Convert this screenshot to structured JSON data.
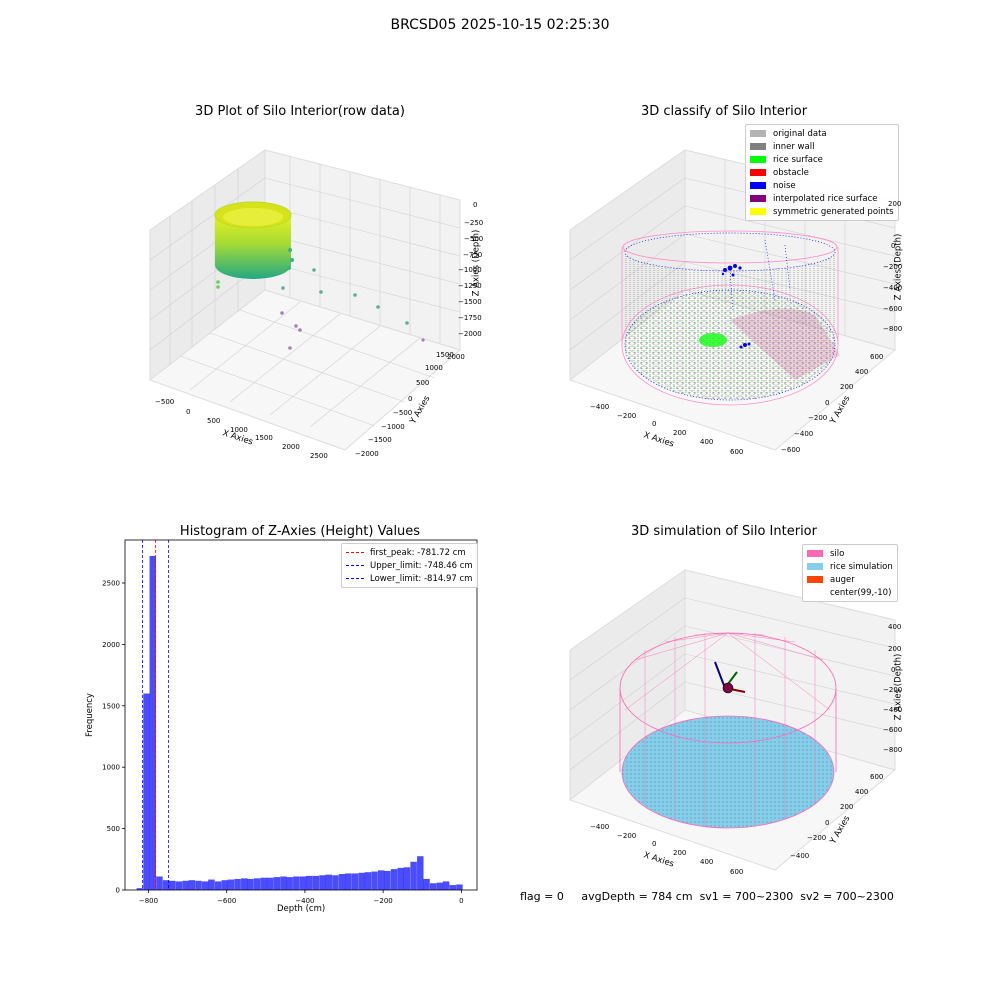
{
  "figure": {
    "title": "BRCSD05 2025-10-15 02:25:30",
    "status_line": {
      "flag": "flag = 0",
      "avg_depth": "avgDepth = 784 cm",
      "sv1": "sv1 = 700~2300",
      "sv2": "sv2 = 700~2300"
    }
  },
  "panels": {
    "raw": {
      "title": "3D Plot of Silo Interior(row data)",
      "xlabel": "X Axies",
      "ylabel": "Y Axies",
      "zlabel": "Z Axies (Depth)",
      "xticks": [
        "−500",
        "0",
        "500",
        "1000",
        "1500",
        "2000",
        "2500"
      ],
      "yticks": [
        "−2000",
        "−1500",
        "−1000",
        "−500",
        "0",
        "500",
        "1000",
        "1500",
        "2000"
      ],
      "zticks": [
        "0",
        "−250",
        "−500",
        "−750",
        "−1000",
        "−1250",
        "−1500",
        "−1750",
        "−2000"
      ]
    },
    "classify": {
      "title": "3D classify of Silo Interior",
      "xlabel": "X Axies",
      "ylabel": "Y Axies",
      "zlabel": "Z Axies (Depth)",
      "xticks": [
        "−400",
        "−200",
        "0",
        "200",
        "400",
        "600"
      ],
      "yticks": [
        "−600",
        "−400",
        "−200",
        "0",
        "200",
        "400",
        "600"
      ],
      "zticks": [
        "200",
        "0",
        "−200",
        "−400",
        "−600",
        "−800"
      ],
      "legend": [
        {
          "label": "original data",
          "color": "#b3b3b3"
        },
        {
          "label": "inner wall",
          "color": "#808080"
        },
        {
          "label": "rice surface",
          "color": "#00ff00"
        },
        {
          "label": "obstacle",
          "color": "#ff0000"
        },
        {
          "label": "noise",
          "color": "#0000ff"
        },
        {
          "label": "interpolated rice surface",
          "color": "#800080"
        },
        {
          "label": "symmetric generated points",
          "color": "#ffff00"
        }
      ]
    },
    "histogram": {
      "title": "Histogram of Z-Axies (Height) Values",
      "xlabel": "Depth (cm)",
      "ylabel": "Frequency",
      "legend": [
        {
          "label": "first_peak: -781.72 cm",
          "color": "#ff0000"
        },
        {
          "label": "Upper_limit: -748.46 cm",
          "color": "#0000ff"
        },
        {
          "label": "Lower_limit: -814.97 cm",
          "color": "#0000ff"
        }
      ]
    },
    "simulation": {
      "title": "3D simulation of Silo Interior",
      "xlabel": "X Axies",
      "ylabel": "Y Axies",
      "zlabel": "Z Axies (Depth)",
      "xticks": [
        "−400",
        "−200",
        "0",
        "200",
        "400",
        "600"
      ],
      "yticks": [
        "−400",
        "−200",
        "0",
        "200",
        "400",
        "600"
      ],
      "zticks": [
        "400",
        "200",
        "0",
        "−200",
        "−400",
        "−600",
        "−800"
      ],
      "legend": [
        {
          "label": "silo",
          "color": "#ff69b4"
        },
        {
          "label": "rice simulation",
          "color": "#87ceeb"
        },
        {
          "label": "auger",
          "color": "#ff4500"
        },
        {
          "label": "center(99,-10)",
          "color": ""
        }
      ]
    }
  },
  "chart_data": [
    {
      "type": "bar",
      "title": "Histogram of Z-Axies (Height) Values",
      "xlabel": "Depth (cm)",
      "ylabel": "Frequency",
      "xlim": [
        -860,
        40
      ],
      "ylim": [
        0,
        2850
      ],
      "xticks": [
        -800,
        -600,
        -400,
        -200,
        0
      ],
      "yticks": [
        0,
        500,
        1000,
        1500,
        2000,
        2500
      ],
      "bar_color": "#0000ff",
      "bin_width": 16.6,
      "bins": [
        {
          "x": -822,
          "y": 15
        },
        {
          "x": -805,
          "y": 1600
        },
        {
          "x": -789,
          "y": 2720
        },
        {
          "x": -772,
          "y": 110
        },
        {
          "x": -755,
          "y": 80
        },
        {
          "x": -739,
          "y": 75
        },
        {
          "x": -722,
          "y": 70
        },
        {
          "x": -705,
          "y": 75
        },
        {
          "x": -689,
          "y": 80
        },
        {
          "x": -672,
          "y": 75
        },
        {
          "x": -655,
          "y": 70
        },
        {
          "x": -639,
          "y": 85
        },
        {
          "x": -622,
          "y": 70
        },
        {
          "x": -605,
          "y": 80
        },
        {
          "x": -589,
          "y": 85
        },
        {
          "x": -572,
          "y": 90
        },
        {
          "x": -555,
          "y": 95
        },
        {
          "x": -539,
          "y": 90
        },
        {
          "x": -522,
          "y": 95
        },
        {
          "x": -505,
          "y": 100
        },
        {
          "x": -489,
          "y": 100
        },
        {
          "x": -472,
          "y": 105
        },
        {
          "x": -455,
          "y": 110
        },
        {
          "x": -439,
          "y": 105
        },
        {
          "x": -422,
          "y": 110
        },
        {
          "x": -405,
          "y": 110
        },
        {
          "x": -389,
          "y": 115
        },
        {
          "x": -372,
          "y": 115
        },
        {
          "x": -355,
          "y": 120
        },
        {
          "x": -339,
          "y": 125
        },
        {
          "x": -322,
          "y": 120
        },
        {
          "x": -305,
          "y": 130
        },
        {
          "x": -289,
          "y": 135
        },
        {
          "x": -272,
          "y": 135
        },
        {
          "x": -255,
          "y": 140
        },
        {
          "x": -239,
          "y": 145
        },
        {
          "x": -222,
          "y": 150
        },
        {
          "x": -205,
          "y": 160
        },
        {
          "x": -189,
          "y": 155
        },
        {
          "x": -172,
          "y": 170
        },
        {
          "x": -155,
          "y": 180
        },
        {
          "x": -139,
          "y": 185
        },
        {
          "x": -122,
          "y": 230
        },
        {
          "x": -105,
          "y": 275
        },
        {
          "x": -89,
          "y": 90
        },
        {
          "x": -72,
          "y": 55
        },
        {
          "x": -55,
          "y": 60
        },
        {
          "x": -39,
          "y": 70
        },
        {
          "x": -22,
          "y": 40
        },
        {
          "x": -5,
          "y": 45
        }
      ],
      "vlines": [
        {
          "name": "first_peak",
          "x": -781.72,
          "color": "#ff0000"
        },
        {
          "name": "Upper_limit",
          "x": -748.46,
          "color": "#0000ff"
        },
        {
          "name": "Lower_limit",
          "x": -814.97,
          "color": "#0000ff"
        }
      ],
      "legend_position": "top-right"
    }
  ]
}
